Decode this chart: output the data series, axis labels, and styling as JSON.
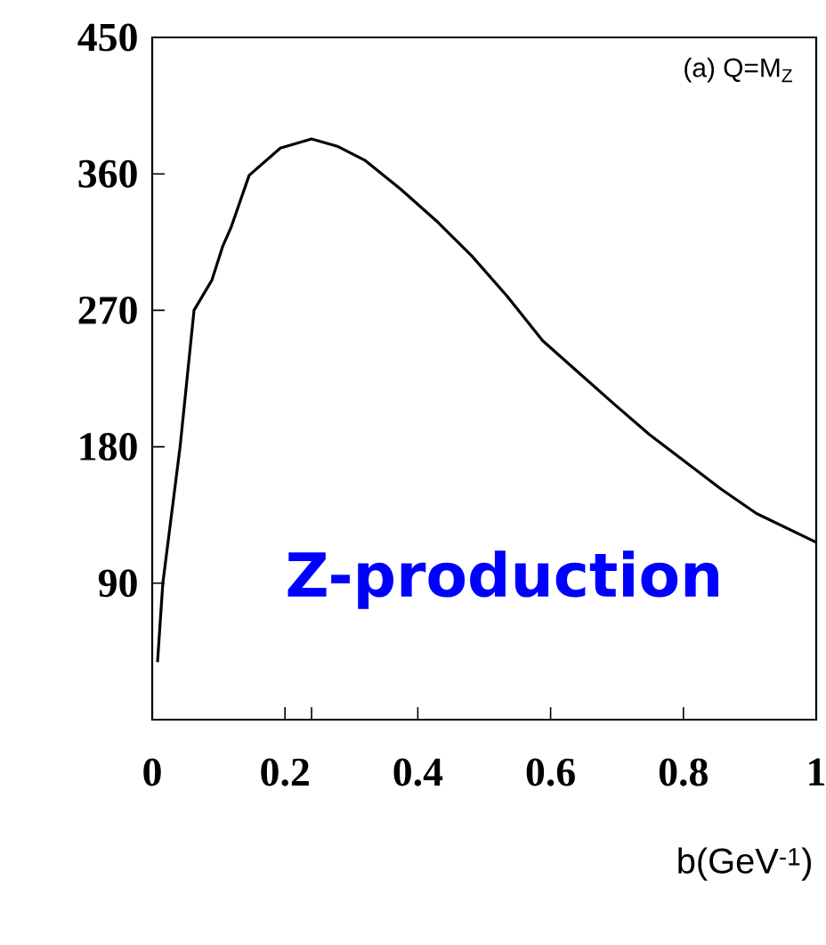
{
  "chart_data": {
    "type": "line",
    "xlabel": "b(GeV$^{-1}$)",
    "annotations": [
      "(a) Q=M$_{Z}$",
      "Z-production"
    ],
    "x": [
      0.008,
      0.016,
      0.042,
      0.063,
      0.09,
      0.106,
      0.119,
      0.146,
      0.193,
      0.24,
      0.28,
      0.32,
      0.374,
      0.428,
      0.481,
      0.535,
      0.588,
      0.642,
      0.696,
      0.749,
      0.803,
      0.857,
      0.91,
      1.0
    ],
    "series": [
      {
        "color": "#000000",
        "values": [
          38,
          90,
          180,
          270,
          290,
          312,
          325,
          359,
          377,
          383,
          378,
          369,
          350,
          329,
          306,
          279,
          250,
          229,
          208,
          188,
          170,
          152,
          136,
          117
        ]
      }
    ],
    "xlim": [
      0,
      1
    ],
    "ylim": [
      0,
      450
    ],
    "xticks": [
      0,
      0.2,
      {
        "value": 0.24,
        "label": null
      },
      0.4,
      0.6,
      0.8,
      1
    ],
    "yticks": [
      90,
      180,
      270,
      360,
      450
    ],
    "marker": "none",
    "line_style": "solid"
  }
}
